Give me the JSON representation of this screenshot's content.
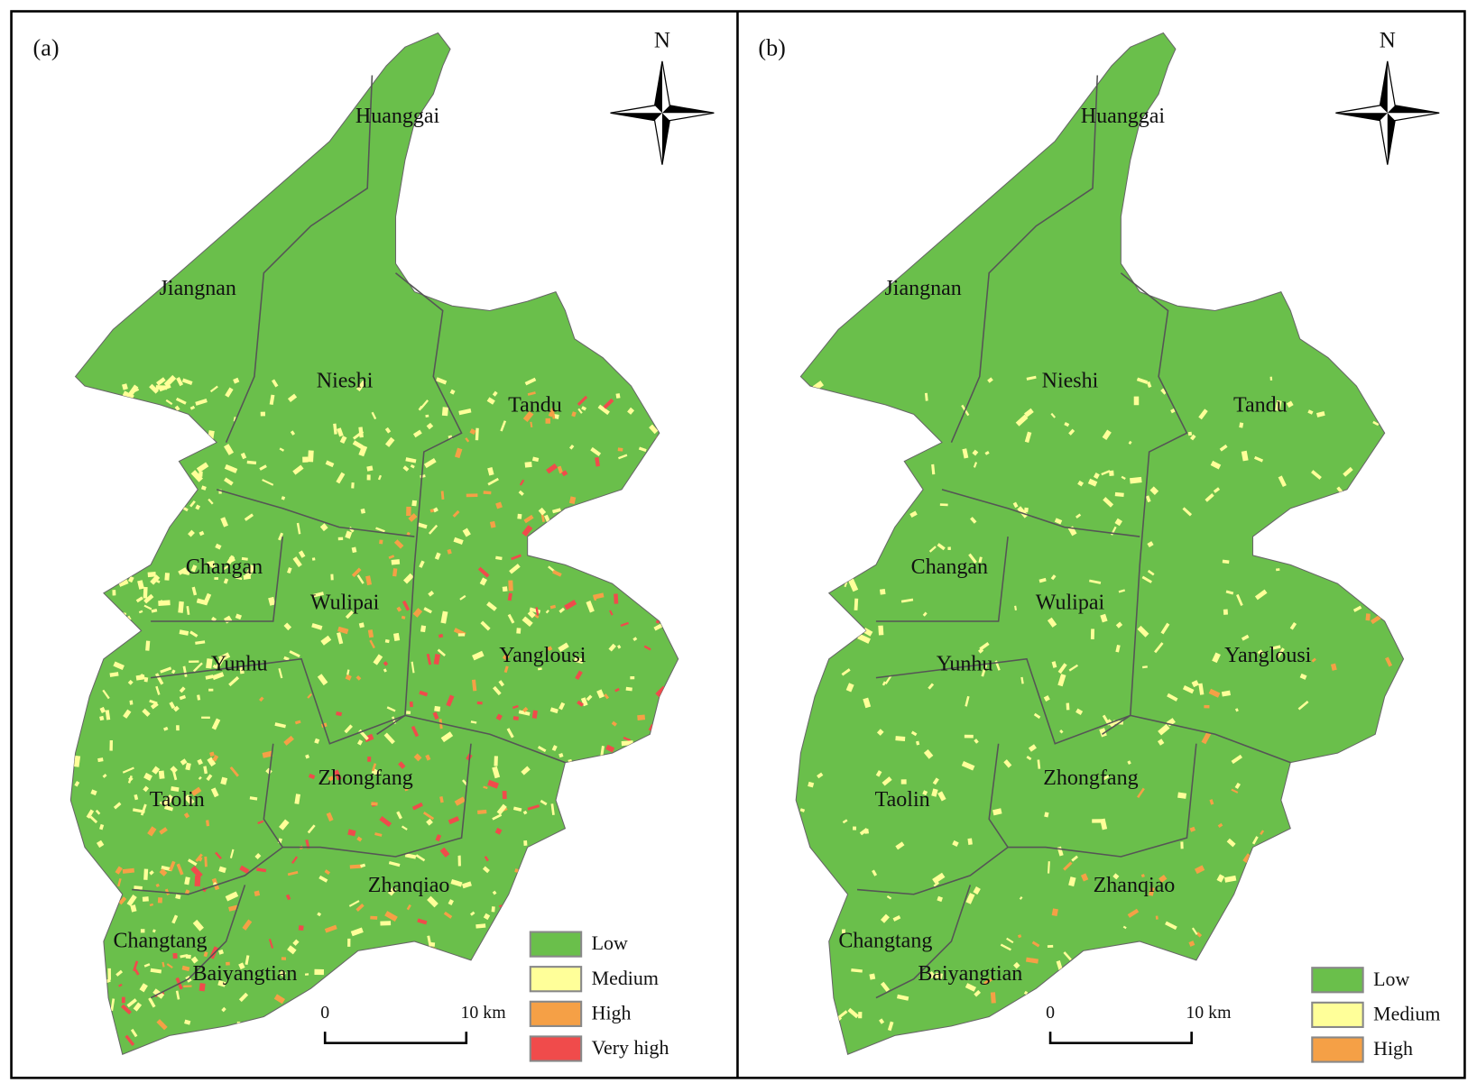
{
  "panels": [
    {
      "label": "(a)",
      "north": "N",
      "places": [
        "Huanggai",
        "Jiangnan",
        "Nieshi",
        "Tandu",
        "Changan",
        "Wulipai",
        "Yanglousi",
        "Yunhu",
        "Zhongfang",
        "Taolin",
        "Zhanqiao",
        "Changtang",
        "Baiyangtian"
      ],
      "legend": [
        {
          "label": "Low",
          "color": "#6abf4b"
        },
        {
          "label": "Medium",
          "color": "#ffff99"
        },
        {
          "label": "High",
          "color": "#f5a046"
        },
        {
          "label": "Very high",
          "color": "#f04b4b"
        }
      ],
      "scale": {
        "start": "0",
        "end": "10 km"
      }
    },
    {
      "label": "(b)",
      "north": "N",
      "places": [
        "Huanggai",
        "Jiangnan",
        "Nieshi",
        "Tandu",
        "Changan",
        "Wulipai",
        "Yanglousi",
        "Yunhu",
        "Zhongfang",
        "Taolin",
        "Zhanqiao",
        "Changtang",
        "Baiyangtian"
      ],
      "legend": [
        {
          "label": "Low",
          "color": "#6abf4b"
        },
        {
          "label": "Medium",
          "color": "#ffff99"
        },
        {
          "label": "High",
          "color": "#f5a046"
        }
      ],
      "scale": {
        "start": "0",
        "end": "10 km"
      }
    }
  ]
}
